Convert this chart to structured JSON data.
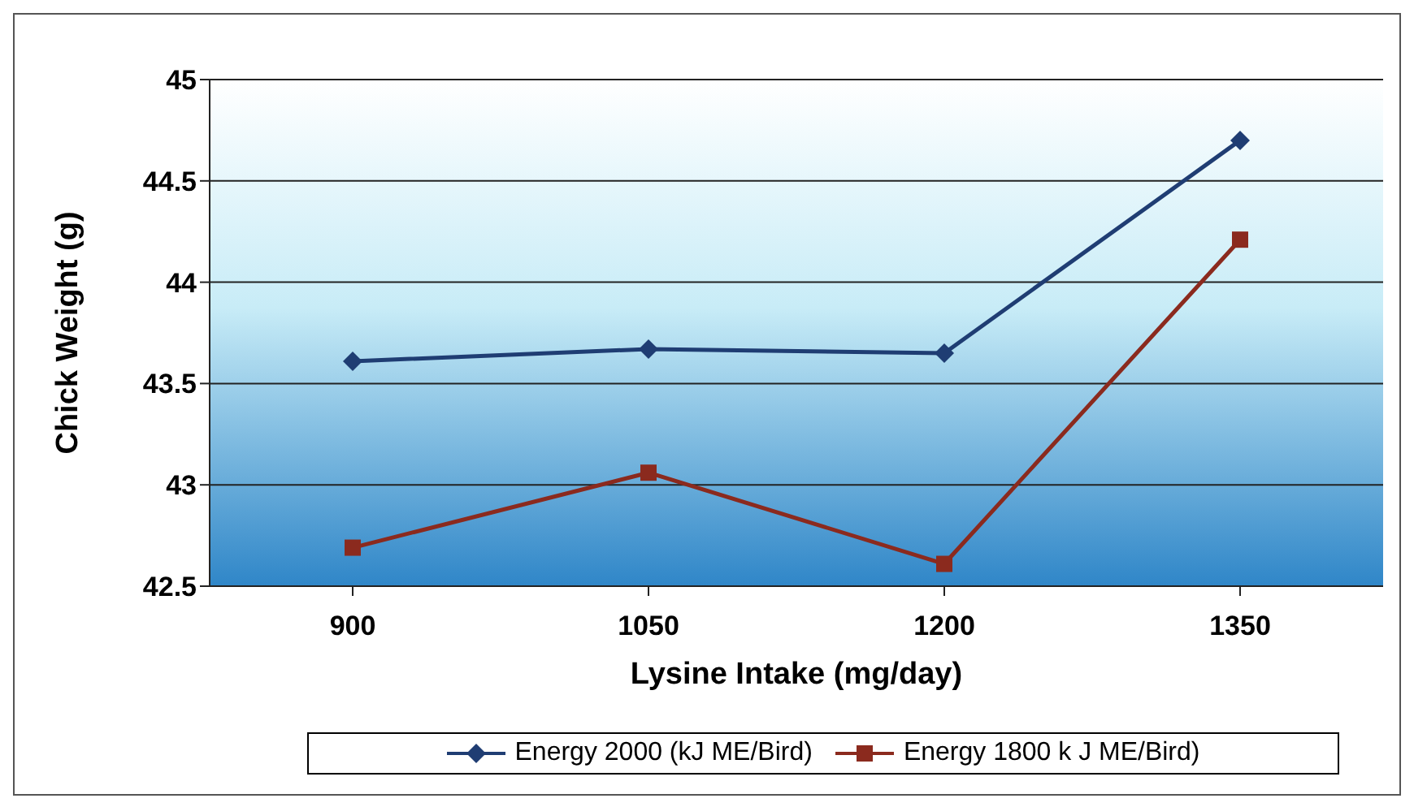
{
  "chart_data": {
    "type": "line",
    "xlabel": "Lysine Intake (mg/day)",
    "ylabel": "Chick Weight (g)",
    "categories": [
      "900",
      "1050",
      "1200",
      "1350"
    ],
    "series": [
      {
        "name": "Energy 2000 (kJ ME/Bird)",
        "color": "#1f3d73",
        "values": [
          43.61,
          43.67,
          43.65,
          44.7
        ],
        "marker": "diamond"
      },
      {
        "name": "Energy 1800 k J ME/Bird)",
        "color": "#8b2a1e",
        "values": [
          42.69,
          43.06,
          42.61,
          44.21
        ],
        "marker": "square"
      }
    ],
    "ylim": [
      42.5,
      45
    ],
    "yticks": [
      42.5,
      43,
      43.5,
      44,
      44.5,
      45
    ],
    "grid": "y",
    "legend": "bottom",
    "line_style": "solid"
  }
}
